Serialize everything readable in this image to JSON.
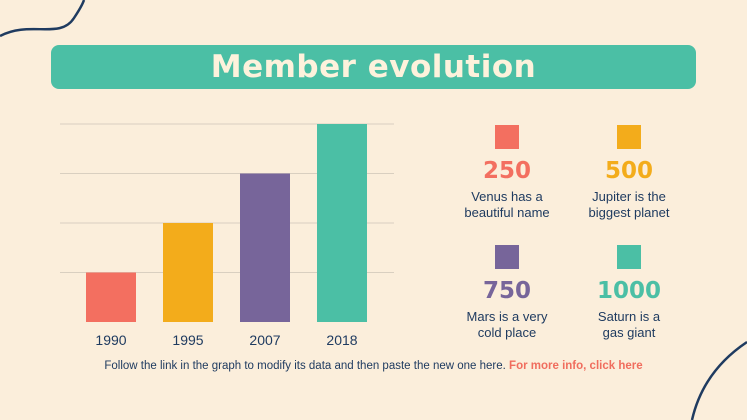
{
  "title": "Member evolution",
  "chart_data": {
    "type": "bar",
    "categories": [
      "1990",
      "1995",
      "2007",
      "2018"
    ],
    "values": [
      250,
      500,
      750,
      1000
    ],
    "colors": [
      "#f36f60",
      "#f3ac1b",
      "#77659a",
      "#4bbfa5"
    ],
    "ylim": [
      0,
      1000
    ],
    "grid": true,
    "title": "",
    "xlabel": "",
    "ylabel": ""
  },
  "legend": [
    {
      "value": "250",
      "line1": "Venus has a",
      "line2": "beautiful name",
      "color": "#f36f60"
    },
    {
      "value": "500",
      "line1": "Jupiter is the",
      "line2": "biggest planet",
      "color": "#f3ac1b"
    },
    {
      "value": "750",
      "line1": "Mars is a very",
      "line2": "cold place",
      "color": "#77659a"
    },
    {
      "value": "1000",
      "line1": "Saturn is a",
      "line2": "gas giant",
      "color": "#4bbfa5"
    }
  ],
  "footer": {
    "text": "Follow the link in the graph to modify its data and then paste the new one here.",
    "link": "For more info, click here"
  }
}
